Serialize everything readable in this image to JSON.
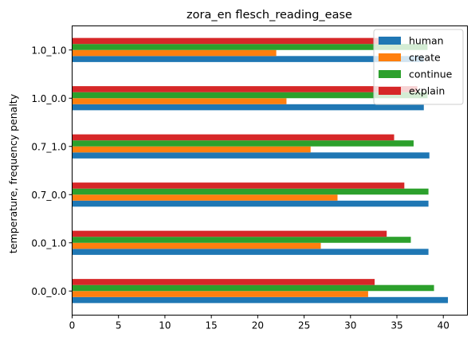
{
  "chart_data": {
    "type": "bar",
    "orientation": "horizontal",
    "title": "zora_en flesch_reading_ease",
    "xlabel": "",
    "ylabel": "temperature, frequency penalty",
    "categories": [
      "0.0_0.0",
      "0.0_1.0",
      "0.7_0.0",
      "0.7_1.0",
      "1.0_0.0",
      "1.0_1.0"
    ],
    "xlim": [
      0,
      42.6
    ],
    "xticks": [
      0,
      5,
      10,
      15,
      20,
      25,
      30,
      35,
      40
    ],
    "grid": false,
    "legend_position": "top-right",
    "series": [
      {
        "name": "human",
        "color": "#1f77b4",
        "values": [
          40.5,
          38.4,
          38.4,
          38.5,
          37.9,
          37.9
        ]
      },
      {
        "name": "create",
        "color": "#ff7f0e",
        "values": [
          31.9,
          26.8,
          28.6,
          25.7,
          23.1,
          22.0
        ]
      },
      {
        "name": "continue",
        "color": "#2ca02c",
        "values": [
          39.0,
          36.5,
          38.4,
          36.8,
          38.3,
          38.3
        ]
      },
      {
        "name": "explain",
        "color": "#d62728",
        "values": [
          32.6,
          33.9,
          35.8,
          34.7,
          37.2,
          33.2
        ]
      }
    ]
  }
}
